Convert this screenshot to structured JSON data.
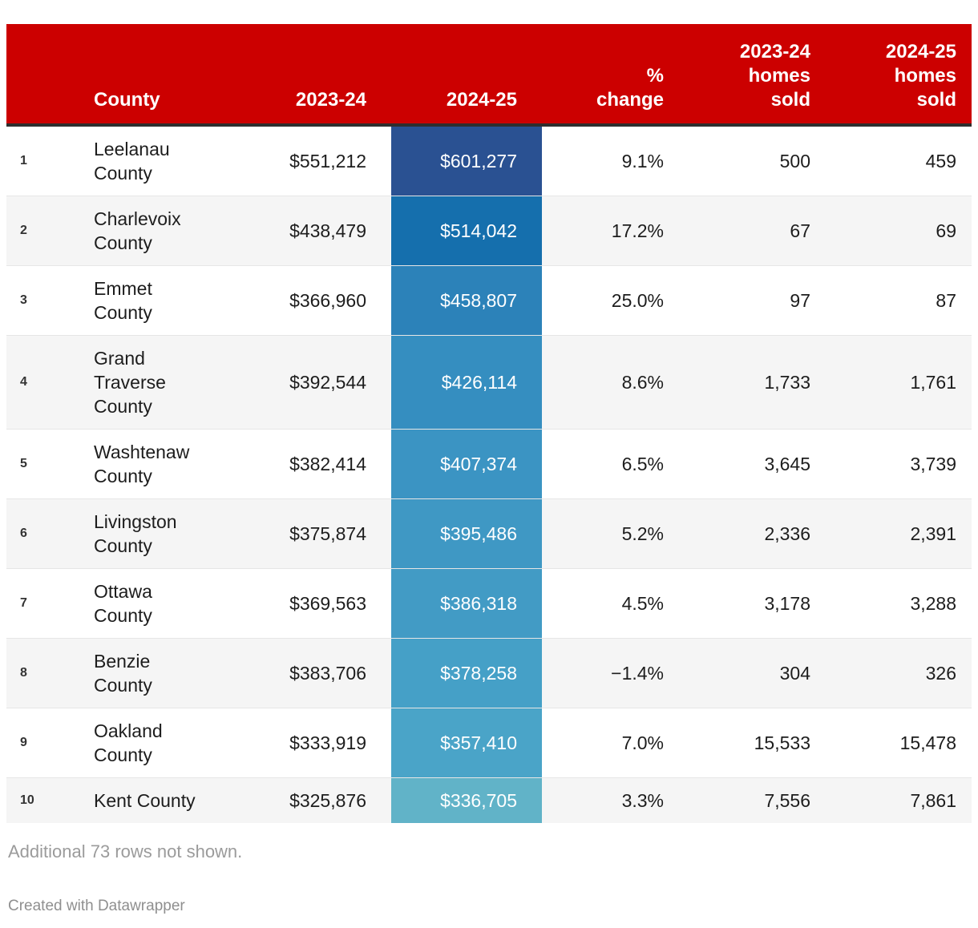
{
  "table": {
    "columns": {
      "rank": "",
      "county": "County",
      "y2023": "2023-24",
      "y2024": "2024-25",
      "pct": "%\nchange",
      "homes2023": "2023-24\nhomes\nsold",
      "homes2024": "2024-25\nhomes\nsold"
    },
    "rows": [
      {
        "rank": "1",
        "county": "Leelanau County",
        "y2023": "$551,212",
        "y2024": "$601,277",
        "pct": "9.1%",
        "homes2023": "500",
        "homes2024": "459",
        "highlight": "#2a5192"
      },
      {
        "rank": "2",
        "county": "Charlevoix County",
        "y2023": "$438,479",
        "y2024": "$514,042",
        "pct": "17.2%",
        "homes2023": "67",
        "homes2024": "69",
        "highlight": "#156fad"
      },
      {
        "rank": "3",
        "county": "Emmet County",
        "y2023": "$366,960",
        "y2024": "$458,807",
        "pct": "25.0%",
        "homes2023": "97",
        "homes2024": "87",
        "highlight": "#2c82b9"
      },
      {
        "rank": "4",
        "county": "Grand Traverse County",
        "y2023": "$392,544",
        "y2024": "$426,114",
        "pct": "8.6%",
        "homes2023": "1,733",
        "homes2024": "1,761",
        "highlight": "#358ec0"
      },
      {
        "rank": "5",
        "county": "Washtenaw County",
        "y2023": "$382,414",
        "y2024": "$407,374",
        "pct": "6.5%",
        "homes2023": "3,645",
        "homes2024": "3,739",
        "highlight": "#3b94c3"
      },
      {
        "rank": "6",
        "county": "Livingston County",
        "y2023": "$375,874",
        "y2024": "$395,486",
        "pct": "5.2%",
        "homes2023": "2,336",
        "homes2024": "2,391",
        "highlight": "#3f98c4"
      },
      {
        "rank": "7",
        "county": "Ottawa County",
        "y2023": "$369,563",
        "y2024": "$386,318",
        "pct": "4.5%",
        "homes2023": "3,178",
        "homes2024": "3,288",
        "highlight": "#429bc5"
      },
      {
        "rank": "8",
        "county": "Benzie County",
        "y2023": "$383,706",
        "y2024": "$378,258",
        "pct": "−1.4%",
        "homes2023": "304",
        "homes2024": "326",
        "highlight": "#45a0c7"
      },
      {
        "rank": "9",
        "county": "Oakland County",
        "y2023": "$333,919",
        "y2024": "$357,410",
        "pct": "7.0%",
        "homes2023": "15,533",
        "homes2024": "15,478",
        "highlight": "#4aa4c8"
      },
      {
        "rank": "10",
        "county": "Kent County",
        "y2023": "$325,876",
        "y2024": "$336,705",
        "pct": "3.3%",
        "homes2023": "7,556",
        "homes2024": "7,861",
        "highlight": "#61b3c8"
      }
    ]
  },
  "footer": {
    "note": "Additional 73 rows not shown.",
    "credit": "Created with Datawrapper"
  },
  "colors": {
    "header_bg": "#cc0000",
    "header_text": "#ffffff",
    "header_border": "#2e2e2e",
    "row_alt_bg": "#f5f5f5",
    "row_divider": "#e6e6e6",
    "body_text": "#1d1d1d",
    "note_text": "#9b9b9b",
    "credit_text": "#8f8f8f"
  },
  "chart_data": {
    "type": "table",
    "title": "",
    "columns": [
      "County",
      "2023-24",
      "2024-25",
      "% change",
      "2023-24 homes sold",
      "2024-25 homes sold"
    ],
    "rows": [
      [
        "Leelanau County",
        551212,
        601277,
        9.1,
        500,
        459
      ],
      [
        "Charlevoix County",
        438479,
        514042,
        17.2,
        67,
        69
      ],
      [
        "Emmet County",
        366960,
        458807,
        25.0,
        97,
        87
      ],
      [
        "Grand Traverse County",
        392544,
        426114,
        8.6,
        1733,
        1761
      ],
      [
        "Washtenaw County",
        382414,
        407374,
        6.5,
        3645,
        3739
      ],
      [
        "Livingston County",
        375874,
        395486,
        5.2,
        2336,
        2391
      ],
      [
        "Ottawa County",
        369563,
        386318,
        4.5,
        3178,
        3288
      ],
      [
        "Benzie County",
        383706,
        378258,
        -1.4,
        304,
        326
      ],
      [
        "Oakland County",
        333919,
        357410,
        7.0,
        15533,
        15478
      ],
      [
        "Kent County",
        325876,
        336705,
        3.3,
        7556,
        7861
      ]
    ],
    "layout_hints": {
      "heatmap_column": "2024-25",
      "heatmap_scale": "dark blue (high) to light teal-blue (low)",
      "rows_hidden": 73
    }
  }
}
